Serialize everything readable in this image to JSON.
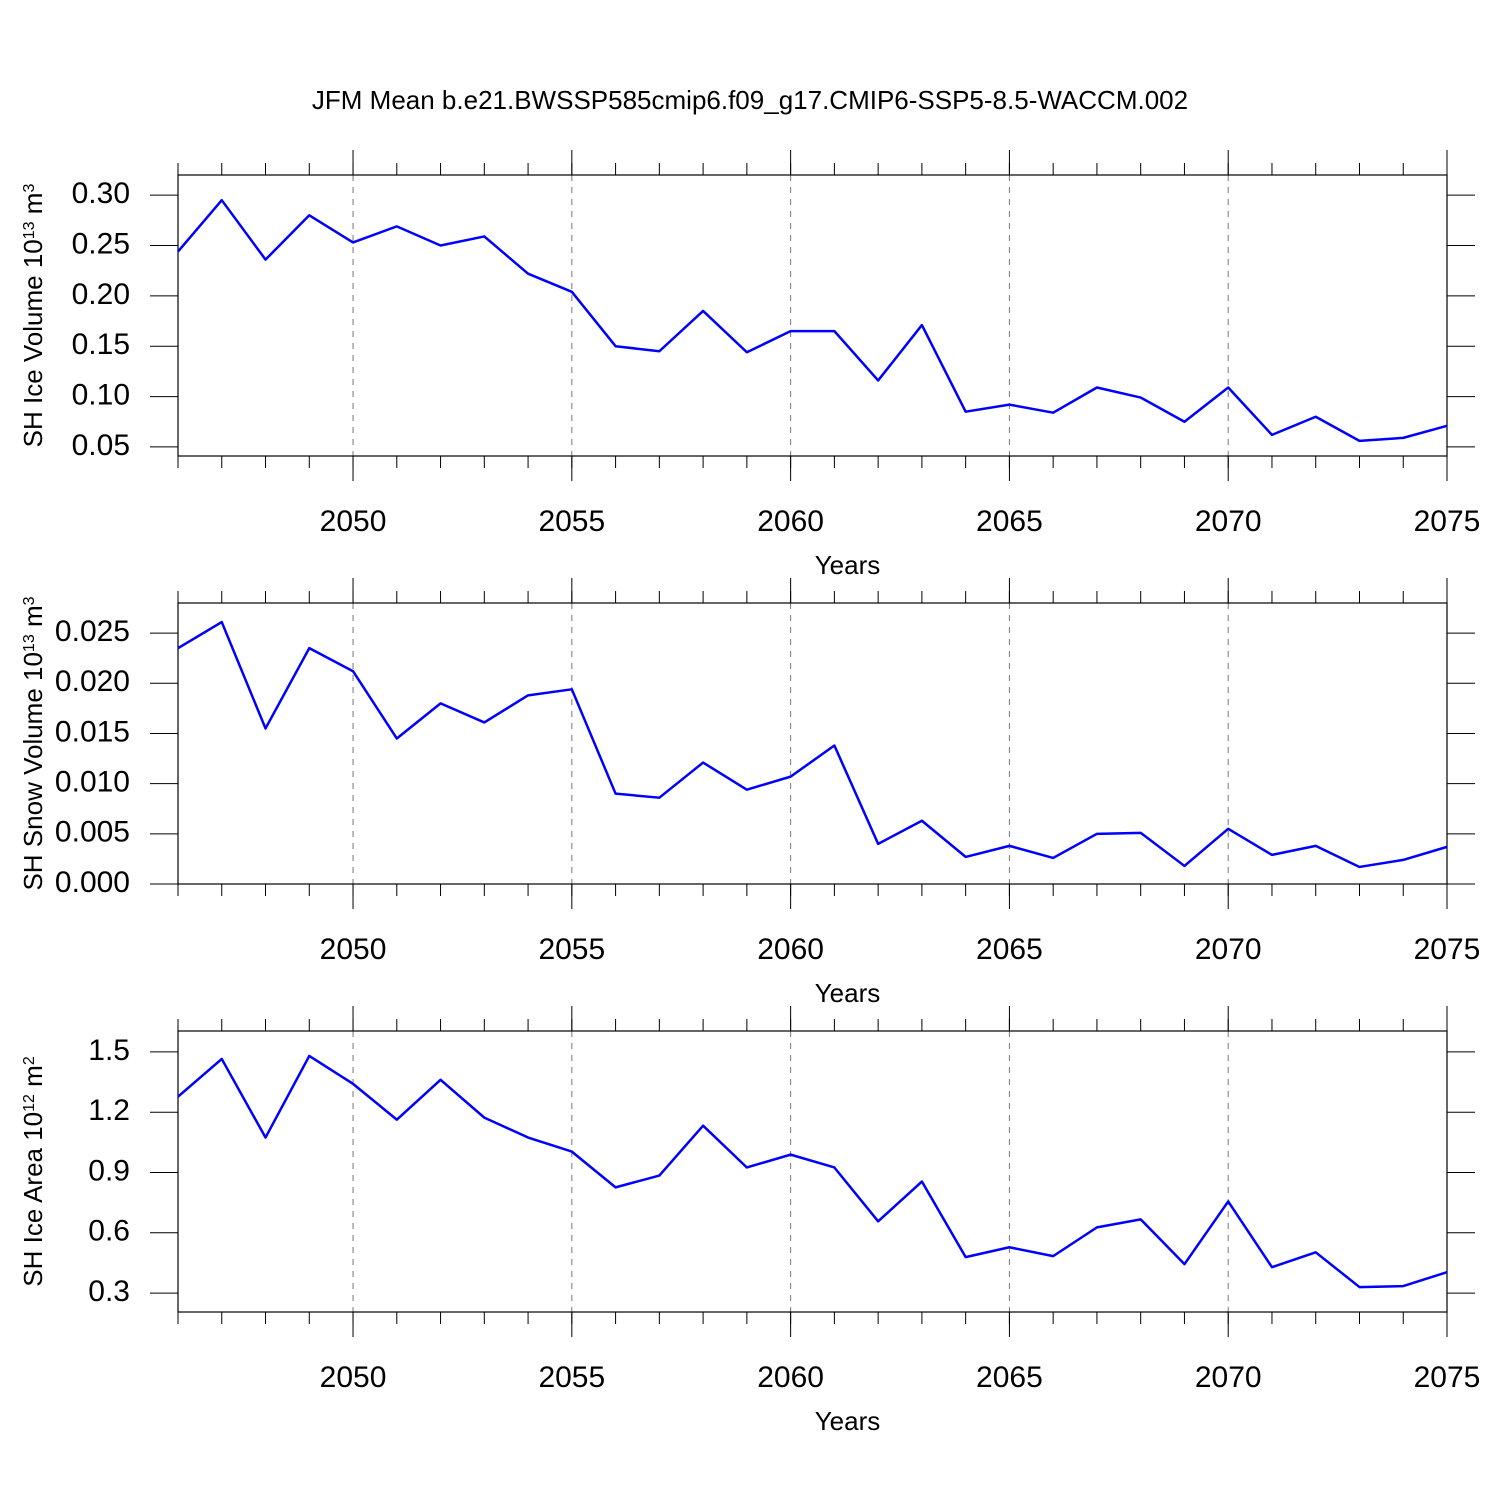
{
  "chart_data": [
    {
      "type": "line",
      "title": "JFM Mean b.e21.BWSSP585cmip6.f09_g17.CMIP6-SSP5-8.5-WACCM.002",
      "xlabel": "Years",
      "ylabel": {
        "text": "SH Ice Volume 10",
        "exponent": "13",
        "unit": "m",
        "unit_exponent": "3"
      },
      "x": [
        2046,
        2047,
        2048,
        2049,
        2050,
        2051,
        2052,
        2053,
        2054,
        2055,
        2056,
        2057,
        2058,
        2059,
        2060,
        2061,
        2062,
        2063,
        2064,
        2065,
        2066,
        2067,
        2068,
        2069,
        2070,
        2071,
        2072,
        2073,
        2074,
        2075
      ],
      "series": [
        {
          "color": "#0000ff",
          "values": [
            0.244,
            0.295,
            0.236,
            0.28,
            0.253,
            0.269,
            0.25,
            0.259,
            0.222,
            0.204,
            0.15,
            0.145,
            0.185,
            0.144,
            0.165,
            0.165,
            0.116,
            0.171,
            0.085,
            0.092,
            0.084,
            0.109,
            0.099,
            0.075,
            0.109,
            0.062,
            0.08,
            0.056,
            0.059,
            0.071
          ]
        }
      ],
      "xlim": [
        2046,
        2075
      ],
      "xticks": [
        2050,
        2055,
        2060,
        2065,
        2070,
        2075
      ],
      "ylim": [
        0.041,
        0.32
      ],
      "yticks": [
        {
          "value": 0.05,
          "label": "0.05"
        },
        {
          "value": 0.1,
          "label": "0.10"
        },
        {
          "value": 0.15,
          "label": "0.15"
        },
        {
          "value": 0.2,
          "label": "0.20"
        },
        {
          "value": 0.25,
          "label": "0.25"
        },
        {
          "value": 0.3,
          "label": "0.30"
        }
      ],
      "grid": "x"
    },
    {
      "type": "line",
      "xlabel": "Years",
      "ylabel": {
        "text": "SH Snow Volume 10",
        "exponent": "13",
        "unit": "m",
        "unit_exponent": "3"
      },
      "x": [
        2046,
        2047,
        2048,
        2049,
        2050,
        2051,
        2052,
        2053,
        2054,
        2055,
        2056,
        2057,
        2058,
        2059,
        2060,
        2061,
        2062,
        2063,
        2064,
        2065,
        2066,
        2067,
        2068,
        2069,
        2070,
        2071,
        2072,
        2073,
        2074,
        2075
      ],
      "series": [
        {
          "color": "#0000ff",
          "values": [
            0.0235,
            0.0261,
            0.0155,
            0.0235,
            0.0212,
            0.0145,
            0.018,
            0.0161,
            0.0188,
            0.0194,
            0.009,
            0.0086,
            0.0121,
            0.0094,
            0.0107,
            0.0138,
            0.004,
            0.0063,
            0.0027,
            0.0038,
            0.0026,
            0.005,
            0.0051,
            0.0018,
            0.0055,
            0.0029,
            0.0038,
            0.0017,
            0.0024,
            0.0037
          ]
        }
      ],
      "xlim": [
        2046,
        2075
      ],
      "xticks": [
        2050,
        2055,
        2060,
        2065,
        2070,
        2075
      ],
      "ylim": [
        0,
        0.028
      ],
      "yticks": [
        {
          "value": 0,
          "label": "0.000"
        },
        {
          "value": 0.005,
          "label": "0.005"
        },
        {
          "value": 0.01,
          "label": "0.010"
        },
        {
          "value": 0.015,
          "label": "0.015"
        },
        {
          "value": 0.02,
          "label": "0.020"
        },
        {
          "value": 0.025,
          "label": "0.025"
        }
      ],
      "grid": "x"
    },
    {
      "type": "line",
      "xlabel": "Years",
      "ylabel": {
        "text": "SH Ice Area 10",
        "exponent": "12",
        "unit": "m",
        "unit_exponent": "2"
      },
      "x": [
        2046,
        2047,
        2048,
        2049,
        2050,
        2051,
        2052,
        2053,
        2054,
        2055,
        2056,
        2057,
        2058,
        2059,
        2060,
        2061,
        2062,
        2063,
        2064,
        2065,
        2066,
        2067,
        2068,
        2069,
        2070,
        2071,
        2072,
        2073,
        2074,
        2075
      ],
      "series": [
        {
          "color": "#0000ff",
          "values": [
            1.277,
            1.465,
            1.074,
            1.48,
            1.341,
            1.163,
            1.361,
            1.173,
            1.074,
            1.004,
            0.826,
            0.885,
            1.133,
            0.925,
            0.989,
            0.925,
            0.657,
            0.855,
            0.479,
            0.528,
            0.484,
            0.627,
            0.667,
            0.444,
            0.756,
            0.429,
            0.503,
            0.33,
            0.335,
            0.404
          ]
        }
      ],
      "xlim": [
        2046,
        2075
      ],
      "xticks": [
        2050,
        2055,
        2060,
        2065,
        2070,
        2075
      ],
      "ylim": [
        0.206,
        1.604
      ],
      "yticks": [
        0.3,
        0.6,
        0.9,
        1.2,
        1.5
      ],
      "grid": "x"
    }
  ]
}
